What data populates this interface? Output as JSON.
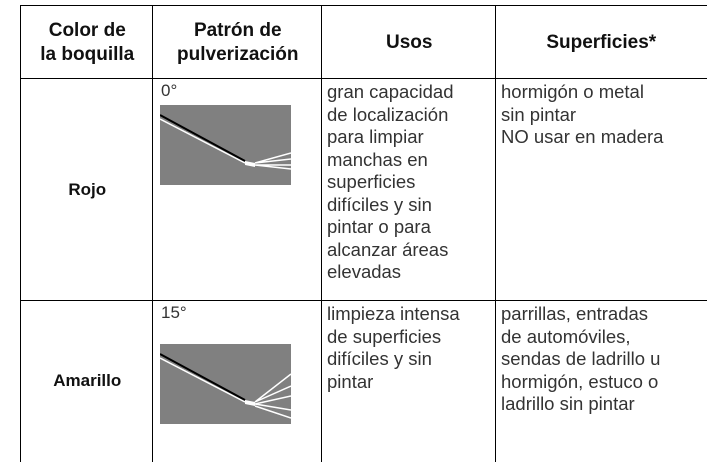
{
  "table": {
    "header": [
      [
        "Color de",
        "la boquilla"
      ],
      [
        "Patrón de",
        "pulverización"
      ],
      [
        "Usos"
      ],
      [
        "Superficies*"
      ]
    ],
    "rows": [
      {
        "color": "Rojo",
        "angle": "0°",
        "usos": [
          "gran capacidad",
          "de localización",
          "para limpiar",
          "manchas en",
          "superficies",
          "difíciles y sin",
          "pintar o para",
          "alcanzar áreas",
          "elevadas"
        ],
        "superficies": [
          "hormigón o metal",
          "sin pintar",
          "NO usar en madera"
        ]
      },
      {
        "color": "Amarillo",
        "angle": "15°",
        "usos": [
          "limpieza intensa",
          "de superficies",
          "difíciles y sin",
          "pintar"
        ],
        "superficies": [
          "parrillas, entradas",
          "de automóviles,",
          "sendas de ladrillo u",
          "hormigón, estuco o",
          "ladrillo sin pintar"
        ]
      }
    ]
  }
}
